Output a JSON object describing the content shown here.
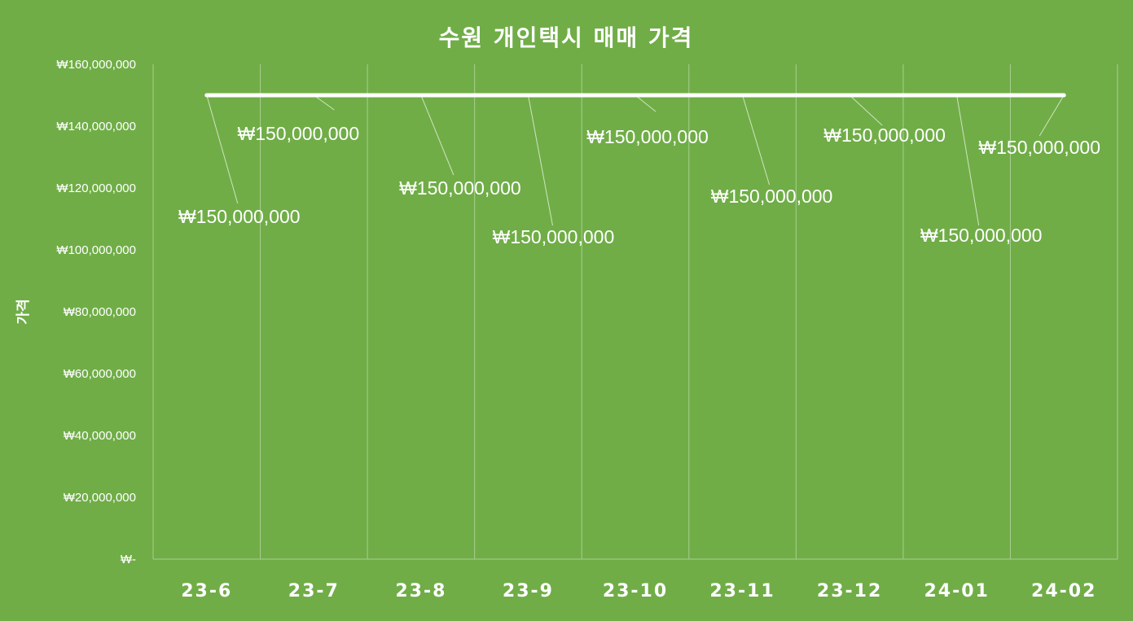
{
  "chart_data": {
    "type": "line",
    "title": "수원 개인택시 매매 가격",
    "ylabel": "가격",
    "xlabel": "",
    "categories": [
      "23-6",
      "23-7",
      "23-8",
      "23-9",
      "23-10",
      "23-11",
      "23-12",
      "24-01",
      "24-02"
    ],
    "series": [
      {
        "values": [
          150000000,
          150000000,
          150000000,
          150000000,
          150000000,
          150000000,
          150000000,
          150000000,
          150000000
        ],
        "data_labels": [
          "₩150,000,000",
          "₩150,000,000",
          "₩150,000,000",
          "₩150,000,000",
          "₩150,000,000",
          "₩150,000,000",
          "₩150,000,000",
          "₩150,000,000",
          "₩150,000,000"
        ]
      }
    ],
    "ylim": [
      0,
      160000000
    ],
    "ytick_values": [
      0,
      20000000,
      40000000,
      60000000,
      80000000,
      100000000,
      120000000,
      140000000,
      160000000
    ],
    "ytick_labels": [
      "₩-",
      "₩20,000,000",
      "₩40,000,000",
      "₩60,000,000",
      "₩80,000,000",
      "₩100,000,000",
      "₩120,000,000",
      "₩140,000,000",
      "₩160,000,000"
    ],
    "grid": "vertical",
    "legend": "none",
    "colors": {
      "background": "#70AD47",
      "line": "#FFFFFF",
      "text": "#FFFFFF",
      "grid": "#A8CF8F"
    }
  }
}
